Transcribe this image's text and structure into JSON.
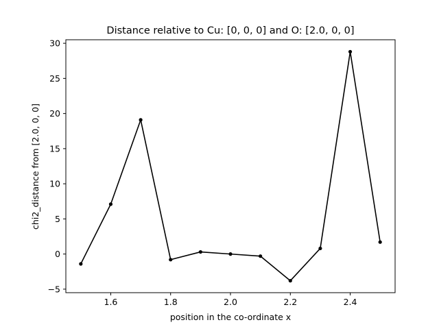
{
  "chart_data": {
    "type": "line",
    "title": "Distance relative to Cu: [0, 0, 0] and O: [2.0, 0, 0]",
    "xlabel": "position in the co-ordinate x",
    "ylabel": "chi2_distance from [2.0, 0, 0]",
    "x": [
      1.5,
      1.6,
      1.7,
      1.8,
      1.9,
      2.0,
      2.1,
      2.2,
      2.3,
      2.4,
      2.5
    ],
    "series": [
      {
        "values": [
          -1.4,
          7.1,
          19.1,
          -0.8,
          0.3,
          0.0,
          -0.3,
          -3.8,
          0.8,
          28.8,
          1.7
        ],
        "color": "#000000",
        "marker": "dot"
      }
    ],
    "xlim": [
      1.45,
      2.55
    ],
    "ylim": [
      -5.5,
      30.5
    ],
    "xticks": [
      1.6,
      1.8,
      2.0,
      2.2,
      2.4
    ],
    "xtick_labels": [
      "1.6",
      "1.8",
      "2.0",
      "2.2",
      "2.4"
    ],
    "yticks": [
      -5,
      0,
      5,
      10,
      15,
      20,
      25,
      30
    ],
    "ytick_labels": [
      "−5",
      "0",
      "5",
      "10",
      "15",
      "20",
      "25",
      "30"
    ],
    "grid": false,
    "legend": "none"
  }
}
